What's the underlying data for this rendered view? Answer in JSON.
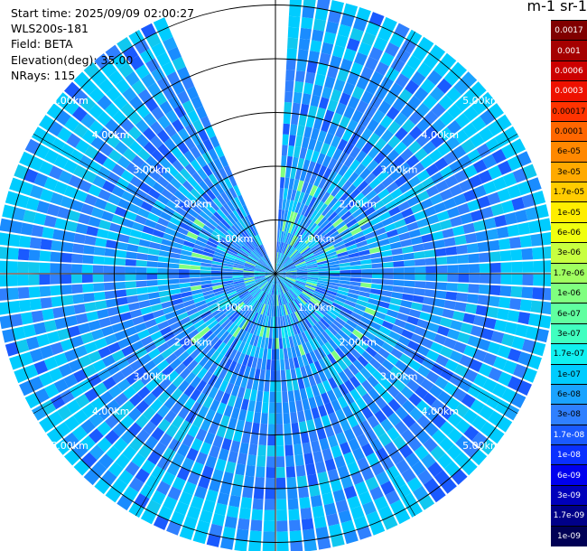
{
  "info": {
    "start_time": "Start time: 2025/09/09 02:00:27",
    "instrument": "WLS200s-181",
    "field": "Field: BETA",
    "elevation": "Elevation(deg): 35.00",
    "nrays": "NRays: 115"
  },
  "colorbar": {
    "title": "m-1 sr-1",
    "labels": [
      "0.0017",
      "0.001",
      "0.0006",
      "0.0003",
      "0.00017",
      "0.0001",
      "6e-05",
      "3e-05",
      "1.7e-05",
      "1e-05",
      "6e-06",
      "3e-06",
      "1.7e-06",
      "1e-06",
      "6e-07",
      "3e-07",
      "1.7e-07",
      "1e-07",
      "6e-08",
      "3e-08",
      "1.7e-08",
      "1e-08",
      "6e-09",
      "3e-09",
      "1.7e-09",
      "1e-09"
    ],
    "colors": [
      "#800000",
      "#a50000",
      "#cc0000",
      "#ee1100",
      "#ff3300",
      "#ff6600",
      "#ff8800",
      "#ffaa00",
      "#ffcc00",
      "#ffee00",
      "#f0ff10",
      "#c8ff40",
      "#a0ff60",
      "#80ff80",
      "#60ffa0",
      "#40ffc0",
      "#10f0f0",
      "#00ccff",
      "#1aa3ff",
      "#2f80ff",
      "#1a5aff",
      "#0a30ff",
      "#0000ee",
      "#0000bb",
      "#000088",
      "#000055"
    ]
  },
  "chart_data": {
    "type": "ppi",
    "range_rings_km": [
      1,
      2,
      3,
      4,
      5
    ],
    "ring_labels": [
      "1.00km",
      "2.00km",
      "3.00km",
      "4.00km",
      "5.00km"
    ],
    "max_range_km": 5.2,
    "azimuth_gap_deg": [
      -23,
      3
    ],
    "field": "BETA",
    "nrays": 115
  }
}
